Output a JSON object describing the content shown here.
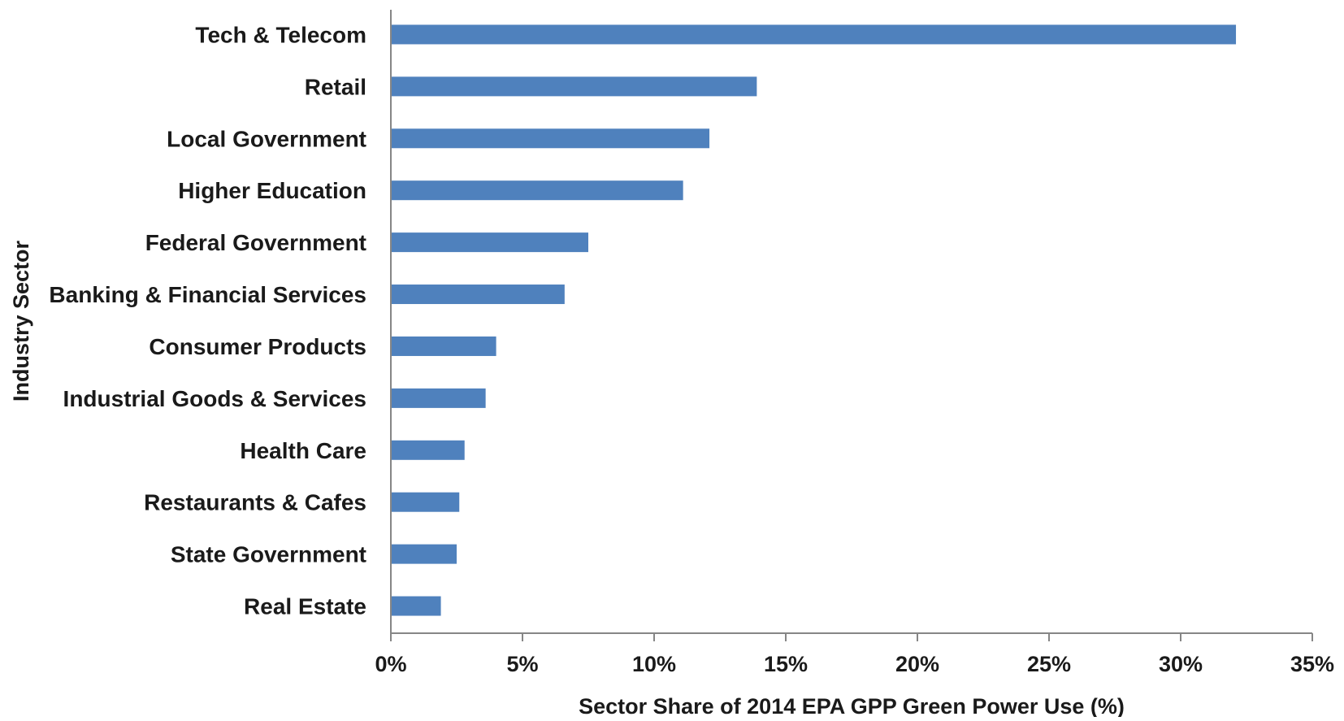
{
  "chart_data": {
    "type": "bar",
    "orientation": "horizontal",
    "title": "",
    "xlabel": "Sector Share of 2014 EPA GPP Green Power Use (%)",
    "ylabel": "Industry Sector",
    "categories": [
      "Tech & Telecom",
      "Retail",
      "Local Government",
      "Higher Education",
      "Federal Government",
      "Banking & Financial Services",
      "Consumer Products",
      "Industrial Goods & Services",
      "Health Care",
      "Restaurants & Cafes",
      "State Government",
      "Real Estate"
    ],
    "values": [
      32.1,
      13.9,
      12.1,
      11.1,
      7.5,
      6.6,
      4.0,
      3.6,
      2.8,
      2.6,
      2.5,
      1.9
    ],
    "xlim": [
      0,
      35
    ],
    "xticks": [
      0,
      5,
      10,
      15,
      20,
      25,
      30,
      35
    ],
    "xtick_labels": [
      "0%",
      "5%",
      "10%",
      "15%",
      "20%",
      "25%",
      "30%",
      "35%"
    ],
    "grid": false,
    "legend": "none",
    "bar_color": "#4f81bd"
  }
}
